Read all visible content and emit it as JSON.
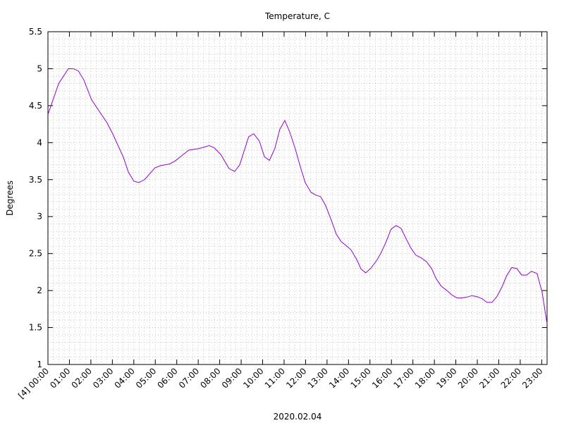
{
  "chart_data": {
    "type": "line",
    "title": "Temperature, C",
    "x_label": "2020.02.04",
    "y_label": "Degrees",
    "x": [
      "00:00",
      "00:30",
      "00:57",
      "01:11",
      "01:25",
      "01:40",
      "02:02",
      "02:24",
      "02:45",
      "03:01",
      "03:31",
      "03:45",
      "04:00",
      "04:14",
      "04:30",
      "04:59",
      "05:15",
      "05:39",
      "05:55",
      "06:18",
      "06:34",
      "07:02",
      "07:31",
      "07:45",
      "08:03",
      "08:26",
      "08:42",
      "08:56",
      "09:21",
      "09:35",
      "09:51",
      "10:05",
      "10:19",
      "10:34",
      "10:48",
      "11:02",
      "11:16",
      "11:31",
      "11:45",
      "11:59",
      "12:15",
      "12:29",
      "12:42",
      "12:56",
      "13:12",
      "13:26",
      "13:40",
      "13:53",
      "14:07",
      "14:23",
      "14:35",
      "14:48",
      "15:02",
      "15:18",
      "15:32",
      "15:46",
      "15:59",
      "16:13",
      "16:27",
      "16:41",
      "16:55",
      "17:08",
      "17:24",
      "17:38",
      "17:52",
      "18:05",
      "18:19",
      "18:35",
      "18:49",
      "19:03",
      "19:16",
      "19:30",
      "19:44",
      "19:58",
      "20:13",
      "20:27",
      "20:41",
      "20:55",
      "21:09",
      "21:22",
      "21:36",
      "21:50",
      "22:04",
      "22:18",
      "22:31",
      "22:47",
      "23:01",
      "23:15"
    ],
    "series": [
      {
        "color": "#9400d3",
        "values": [
          4.38,
          4.8,
          5.0,
          5.0,
          4.97,
          4.85,
          4.58,
          4.42,
          4.27,
          4.12,
          3.8,
          3.6,
          3.48,
          3.46,
          3.5,
          3.66,
          3.69,
          3.71,
          3.75,
          3.84,
          3.9,
          3.92,
          3.96,
          3.93,
          3.84,
          3.65,
          3.61,
          3.7,
          4.08,
          4.12,
          4.02,
          3.81,
          3.76,
          3.92,
          4.18,
          4.3,
          4.14,
          3.92,
          3.68,
          3.46,
          3.33,
          3.29,
          3.27,
          3.15,
          2.95,
          2.76,
          2.66,
          2.61,
          2.55,
          2.42,
          2.29,
          2.24,
          2.3,
          2.4,
          2.52,
          2.67,
          2.83,
          2.88,
          2.84,
          2.7,
          2.57,
          2.48,
          2.44,
          2.39,
          2.3,
          2.16,
          2.06,
          2.0,
          1.94,
          1.9,
          1.9,
          1.91,
          1.93,
          1.92,
          1.89,
          1.84,
          1.84,
          1.92,
          2.05,
          2.2,
          2.31,
          2.3,
          2.21,
          2.21,
          2.26,
          2.23,
          1.98,
          1.55
        ]
      }
    ],
    "xlim": [
      "00:00",
      "23:15"
    ],
    "xticks": [
      {
        "value": "00:00",
        "label": "[4] 00:00"
      },
      "01:00",
      "02:00",
      "03:00",
      "04:00",
      "05:00",
      "06:00",
      "07:00",
      "08:00",
      "09:00",
      "10:00",
      "11:00",
      "12:00",
      "13:00",
      "14:00",
      "15:00",
      "16:00",
      "17:00",
      "18:00",
      "19:00",
      "20:00",
      "21:00",
      "22:00",
      "23:00"
    ],
    "ylim": [
      1,
      5.5
    ],
    "yticks": [
      1,
      1.5,
      2,
      2.5,
      3,
      3.5,
      4,
      4.5,
      5,
      5.5
    ],
    "grid": true,
    "xminor": 4,
    "yminor": 5
  }
}
